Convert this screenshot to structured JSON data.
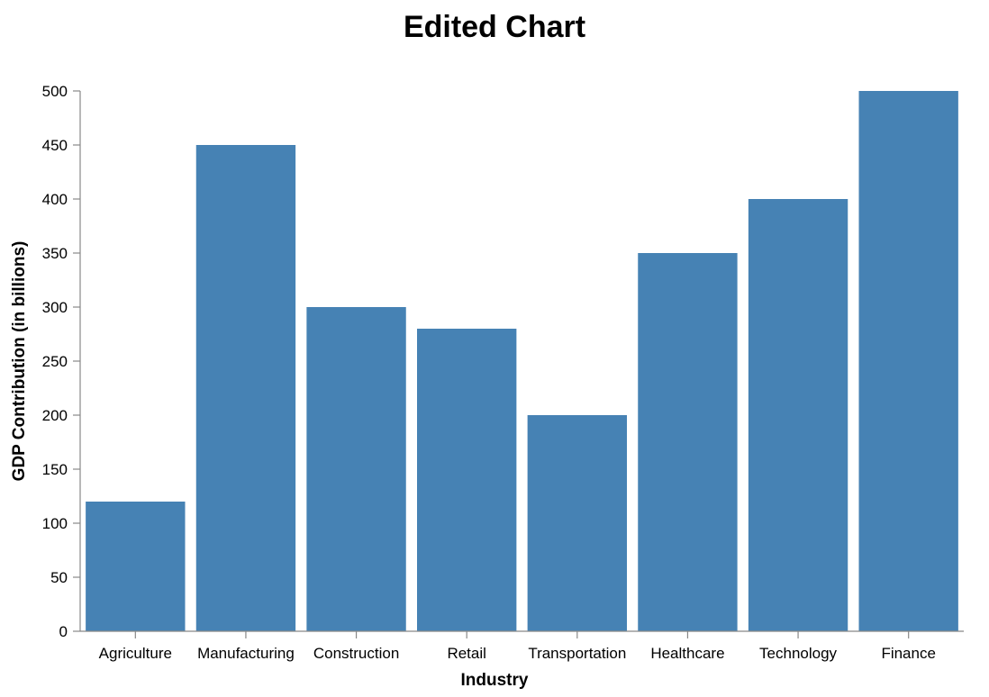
{
  "chart_data": {
    "type": "bar",
    "title": "Edited Chart",
    "xlabel": "Industry",
    "ylabel": "GDP Contribution (in billions)",
    "categories": [
      "Agriculture",
      "Manufacturing",
      "Construction",
      "Retail",
      "Transportation",
      "Healthcare",
      "Technology",
      "Finance"
    ],
    "values": [
      120,
      450,
      300,
      280,
      200,
      350,
      400,
      500
    ],
    "ylim": [
      0,
      500
    ],
    "yticks": [
      0,
      50,
      100,
      150,
      200,
      250,
      300,
      350,
      400,
      450,
      500
    ],
    "grid": false,
    "legend": "none",
    "colors": {
      "bar": "#4682b4",
      "axis": "#888888"
    }
  }
}
